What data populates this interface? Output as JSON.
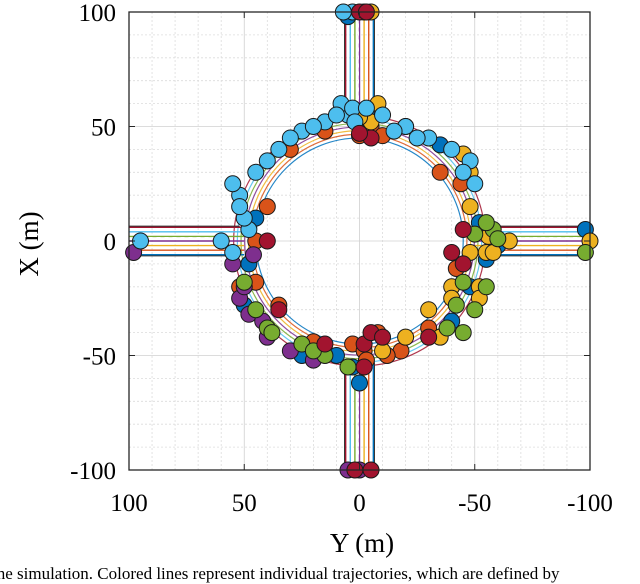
{
  "chart_data": {
    "type": "scatter",
    "title": "",
    "xlabel": "Y (m)",
    "ylabel": "X (m)",
    "xlim": [
      100,
      -100
    ],
    "ylim": [
      -100,
      100
    ],
    "x_reversed": true,
    "xticks": [
      100,
      50,
      0,
      -50,
      -100
    ],
    "yticks": [
      100,
      50,
      0,
      -50,
      -100
    ],
    "xtick_labels": [
      "100",
      "50",
      "0",
      "-50",
      "-100"
    ],
    "ytick_labels": [
      "100",
      "50",
      "0",
      "-50",
      "-100"
    ],
    "grid": true,
    "minor_grid": true,
    "description_of_geometry": "roundabout with inner radius about 45 m and outer radius about 55 m, four approach roads of width about 12 m",
    "series": [
      {
        "color": "#0072BD",
        "points": [
          [
            5,
            98
          ],
          [
            -60,
            -2
          ],
          [
            -98,
            5
          ],
          [
            -48,
            -20
          ],
          [
            -40,
            -35
          ],
          [
            -52,
            8
          ],
          [
            50,
            -28
          ],
          [
            3,
            -55
          ],
          [
            45,
            10
          ],
          [
            -20,
            50
          ],
          [
            10,
            -50
          ],
          [
            -55,
            -8
          ],
          [
            48,
            -10
          ],
          [
            -35,
            42
          ],
          [
            0,
            -62
          ],
          [
            25,
            -50
          ]
        ]
      },
      {
        "color": "#D95319",
        "points": [
          [
            45,
            -18
          ],
          [
            52,
            -20
          ],
          [
            3,
            -45
          ],
          [
            -5,
            50
          ],
          [
            40,
            15
          ],
          [
            -42,
            -12
          ],
          [
            -2,
            -48
          ],
          [
            20,
            -44
          ],
          [
            -30,
            -38
          ],
          [
            -44,
            25
          ],
          [
            15,
            48
          ],
          [
            30,
            40
          ],
          [
            -10,
            46
          ],
          [
            -18,
            -48
          ],
          [
            45,
            0
          ],
          [
            35,
            -28
          ],
          [
            -8,
            -40
          ],
          [
            -12,
            -50
          ],
          [
            -3,
            -52
          ],
          [
            0,
            46
          ],
          [
            -35,
            30
          ]
        ]
      },
      {
        "color": "#EDB120",
        "points": [
          [
            -5,
            100
          ],
          [
            -100,
            0
          ],
          [
            -65,
            0
          ],
          [
            -45,
            38
          ],
          [
            -5,
            52
          ],
          [
            -48,
            -5
          ],
          [
            -40,
            -20
          ],
          [
            -30,
            -30
          ],
          [
            -10,
            -48
          ],
          [
            -52,
            -20
          ],
          [
            -48,
            30
          ],
          [
            -52,
            -25
          ],
          [
            -35,
            -42
          ],
          [
            -20,
            -42
          ],
          [
            0,
            54
          ],
          [
            -8,
            60
          ],
          [
            -55,
            -5
          ],
          [
            -58,
            -5
          ],
          [
            -48,
            15
          ],
          [
            -56,
            2
          ],
          [
            -40,
            -25
          ]
        ]
      },
      {
        "color": "#7E2F8E",
        "points": [
          [
            98,
            -5
          ],
          [
            5,
            -100
          ],
          [
            0,
            -100
          ],
          [
            55,
            -10
          ],
          [
            52,
            -25
          ],
          [
            48,
            -32
          ],
          [
            40,
            -42
          ],
          [
            30,
            -48
          ],
          [
            20,
            -52
          ],
          [
            50,
            -20
          ],
          [
            42,
            -35
          ],
          [
            46,
            -6
          ]
        ]
      },
      {
        "color": "#77AC30",
        "points": [
          [
            -98,
            -5
          ],
          [
            -58,
            5
          ],
          [
            -50,
            -30
          ],
          [
            -45,
            -40
          ],
          [
            -38,
            -38
          ],
          [
            50,
            -18
          ],
          [
            45,
            -30
          ],
          [
            40,
            -38
          ],
          [
            25,
            -45
          ],
          [
            15,
            -50
          ],
          [
            -55,
            -20
          ],
          [
            -55,
            8
          ],
          [
            -50,
            3
          ],
          [
            -60,
            1
          ],
          [
            38,
            -40
          ],
          [
            20,
            -48
          ],
          [
            5,
            -55
          ],
          [
            -45,
            -18
          ],
          [
            -42,
            -28
          ]
        ]
      },
      {
        "color": "#4DBEEE",
        "points": [
          [
            3,
            100
          ],
          [
            7,
            100
          ],
          [
            -2,
            100
          ],
          [
            95,
            0
          ],
          [
            60,
            0
          ],
          [
            55,
            -5
          ],
          [
            48,
            5
          ],
          [
            50,
            10
          ],
          [
            52,
            20
          ],
          [
            45,
            30
          ],
          [
            35,
            40
          ],
          [
            25,
            48
          ],
          [
            15,
            52
          ],
          [
            5,
            55
          ],
          [
            8,
            60
          ],
          [
            3,
            58
          ],
          [
            -3,
            58
          ],
          [
            -10,
            55
          ],
          [
            -20,
            50
          ],
          [
            -30,
            45
          ],
          [
            -40,
            40
          ],
          [
            -48,
            35
          ],
          [
            -50,
            25
          ],
          [
            52,
            15
          ],
          [
            55,
            25
          ],
          [
            40,
            35
          ],
          [
            30,
            45
          ],
          [
            20,
            50
          ],
          [
            10,
            55
          ],
          [
            2,
            52
          ],
          [
            -15,
            48
          ],
          [
            -25,
            45
          ],
          [
            -45,
            30
          ]
        ]
      },
      {
        "color": "#A2142F",
        "points": [
          [
            0,
            100
          ],
          [
            -3,
            100
          ],
          [
            2,
            -100
          ],
          [
            -5,
            -100
          ],
          [
            -2,
            -45
          ],
          [
            -5,
            -40
          ],
          [
            40,
            0
          ],
          [
            -30,
            -42
          ],
          [
            -5,
            45
          ],
          [
            -40,
            -5
          ],
          [
            -45,
            5
          ],
          [
            -2,
            -55
          ],
          [
            15,
            -45
          ],
          [
            -10,
            -42
          ],
          [
            35,
            -30
          ],
          [
            -45,
            -10
          ],
          [
            0,
            47
          ]
        ]
      }
    ]
  },
  "caption": {
    "text": "the simulation. Colored lines represent individual trajectories, which are defined by"
  }
}
